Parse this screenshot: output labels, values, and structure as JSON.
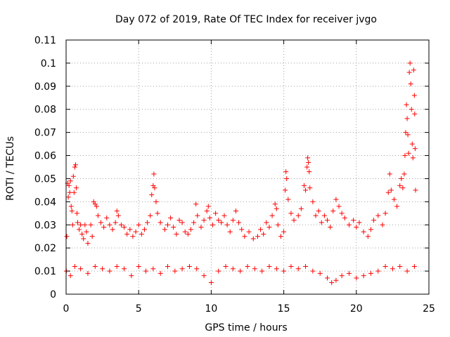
{
  "chart_data": {
    "type": "scatter",
    "title": "Day 072 of 2019, Rate Of TEC Index for receiver jvgo",
    "xlabel": "GPS time / hours",
    "ylabel": "ROTI / TECUs",
    "xlim": [
      0,
      25
    ],
    "ylim": [
      0,
      0.11
    ],
    "xticks": [
      "0",
      "5",
      "10",
      "15",
      "20",
      "25"
    ],
    "yticks": [
      "0",
      "0.01",
      "0.02",
      "0.03",
      "0.04",
      "0.05",
      "0.06",
      "0.07",
      "0.08",
      "0.09",
      "0.1",
      "0.11"
    ],
    "grid": true,
    "marker": "+",
    "color": "#ff0000",
    "series": [
      {
        "name": "ROTI",
        "points": [
          [
            0.05,
            0.025
          ],
          [
            0.1,
            0.048
          ],
          [
            0.15,
            0.042
          ],
          [
            0.2,
            0.047
          ],
          [
            0.25,
            0.044
          ],
          [
            0.3,
            0.049
          ],
          [
            0.35,
            0.038
          ],
          [
            0.4,
            0.036
          ],
          [
            0.45,
            0.03
          ],
          [
            0.5,
            0.051
          ],
          [
            0.55,
            0.044
          ],
          [
            0.6,
            0.055
          ],
          [
            0.65,
            0.056
          ],
          [
            0.7,
            0.046
          ],
          [
            0.75,
            0.035
          ],
          [
            0.8,
            0.031
          ],
          [
            0.9,
            0.028
          ],
          [
            1.0,
            0.03
          ],
          [
            1.1,
            0.026
          ],
          [
            1.2,
            0.024
          ],
          [
            1.3,
            0.03
          ],
          [
            1.4,
            0.027
          ],
          [
            1.5,
            0.022
          ],
          [
            1.7,
            0.03
          ],
          [
            1.8,
            0.025
          ],
          [
            1.9,
            0.04
          ],
          [
            2.0,
            0.039
          ],
          [
            2.1,
            0.038
          ],
          [
            2.2,
            0.034
          ],
          [
            2.4,
            0.031
          ],
          [
            2.6,
            0.029
          ],
          [
            2.8,
            0.033
          ],
          [
            3.0,
            0.03
          ],
          [
            3.2,
            0.028
          ],
          [
            3.4,
            0.031
          ],
          [
            3.5,
            0.036
          ],
          [
            3.6,
            0.034
          ],
          [
            3.8,
            0.03
          ],
          [
            4.0,
            0.029
          ],
          [
            4.2,
            0.026
          ],
          [
            4.4,
            0.028
          ],
          [
            4.6,
            0.025
          ],
          [
            4.8,
            0.027
          ],
          [
            5.0,
            0.03
          ],
          [
            5.2,
            0.026
          ],
          [
            5.4,
            0.028
          ],
          [
            5.6,
            0.031
          ],
          [
            5.8,
            0.034
          ],
          [
            5.9,
            0.043
          ],
          [
            6.0,
            0.047
          ],
          [
            6.05,
            0.052
          ],
          [
            6.1,
            0.046
          ],
          [
            6.2,
            0.04
          ],
          [
            6.3,
            0.035
          ],
          [
            6.5,
            0.031
          ],
          [
            6.8,
            0.028
          ],
          [
            7.0,
            0.03
          ],
          [
            7.2,
            0.033
          ],
          [
            7.4,
            0.029
          ],
          [
            7.6,
            0.026
          ],
          [
            7.8,
            0.032
          ],
          [
            8.0,
            0.031
          ],
          [
            8.2,
            0.027
          ],
          [
            8.4,
            0.026
          ],
          [
            8.6,
            0.028
          ],
          [
            8.8,
            0.031
          ],
          [
            8.95,
            0.039
          ],
          [
            9.05,
            0.034
          ],
          [
            9.3,
            0.029
          ],
          [
            9.5,
            0.032
          ],
          [
            9.7,
            0.036
          ],
          [
            9.8,
            0.038
          ],
          [
            9.9,
            0.033
          ],
          [
            10.1,
            0.03
          ],
          [
            10.3,
            0.035
          ],
          [
            10.5,
            0.032
          ],
          [
            10.7,
            0.031
          ],
          [
            10.9,
            0.034
          ],
          [
            11.1,
            0.03
          ],
          [
            11.3,
            0.027
          ],
          [
            11.5,
            0.032
          ],
          [
            11.7,
            0.036
          ],
          [
            11.9,
            0.031
          ],
          [
            12.1,
            0.028
          ],
          [
            12.3,
            0.025
          ],
          [
            12.6,
            0.027
          ],
          [
            12.9,
            0.024
          ],
          [
            13.2,
            0.025
          ],
          [
            13.4,
            0.028
          ],
          [
            13.6,
            0.026
          ],
          [
            13.8,
            0.031
          ],
          [
            14.0,
            0.029
          ],
          [
            14.2,
            0.034
          ],
          [
            14.4,
            0.039
          ],
          [
            14.5,
            0.037
          ],
          [
            14.6,
            0.03
          ],
          [
            14.8,
            0.025
          ],
          [
            15.0,
            0.027
          ],
          [
            15.1,
            0.045
          ],
          [
            15.15,
            0.053
          ],
          [
            15.2,
            0.05
          ],
          [
            15.3,
            0.041
          ],
          [
            15.5,
            0.035
          ],
          [
            15.7,
            0.032
          ],
          [
            16.0,
            0.034
          ],
          [
            16.2,
            0.037
          ],
          [
            16.4,
            0.047
          ],
          [
            16.5,
            0.045
          ],
          [
            16.6,
            0.055
          ],
          [
            16.65,
            0.059
          ],
          [
            16.7,
            0.057
          ],
          [
            16.75,
            0.053
          ],
          [
            16.8,
            0.046
          ],
          [
            17.0,
            0.04
          ],
          [
            17.2,
            0.034
          ],
          [
            17.4,
            0.036
          ],
          [
            17.6,
            0.031
          ],
          [
            17.8,
            0.034
          ],
          [
            18.0,
            0.032
          ],
          [
            18.2,
            0.029
          ],
          [
            18.4,
            0.036
          ],
          [
            18.6,
            0.041
          ],
          [
            18.8,
            0.038
          ],
          [
            19.0,
            0.035
          ],
          [
            19.2,
            0.033
          ],
          [
            19.5,
            0.03
          ],
          [
            19.8,
            0.032
          ],
          [
            20.0,
            0.029
          ],
          [
            20.2,
            0.031
          ],
          [
            20.5,
            0.027
          ],
          [
            20.8,
            0.025
          ],
          [
            21.0,
            0.028
          ],
          [
            21.2,
            0.032
          ],
          [
            21.5,
            0.034
          ],
          [
            21.8,
            0.03
          ],
          [
            22.0,
            0.035
          ],
          [
            22.2,
            0.044
          ],
          [
            22.3,
            0.052
          ],
          [
            22.4,
            0.045
          ],
          [
            22.6,
            0.041
          ],
          [
            22.8,
            0.038
          ],
          [
            23.0,
            0.047
          ],
          [
            23.1,
            0.05
          ],
          [
            23.2,
            0.046
          ],
          [
            23.3,
            0.052
          ],
          [
            23.35,
            0.06
          ],
          [
            23.4,
            0.07
          ],
          [
            23.45,
            0.082
          ],
          [
            23.5,
            0.076
          ],
          [
            23.55,
            0.069
          ],
          [
            23.6,
            0.061
          ],
          [
            23.65,
            0.096
          ],
          [
            23.7,
            0.1
          ],
          [
            23.75,
            0.091
          ],
          [
            23.8,
            0.08
          ],
          [
            23.85,
            0.065
          ],
          [
            23.9,
            0.059
          ],
          [
            23.95,
            0.097
          ],
          [
            24.0,
            0.086
          ],
          [
            24.02,
            0.078
          ],
          [
            24.05,
            0.063
          ],
          [
            24.08,
            0.045
          ],
          [
            0.02,
            0.01
          ],
          [
            0.3,
            0.008
          ],
          [
            0.6,
            0.012
          ],
          [
            1.0,
            0.011
          ],
          [
            1.5,
            0.009
          ],
          [
            2.0,
            0.012
          ],
          [
            2.5,
            0.011
          ],
          [
            3.0,
            0.01
          ],
          [
            3.5,
            0.012
          ],
          [
            4.0,
            0.011
          ],
          [
            4.5,
            0.008
          ],
          [
            5.0,
            0.012
          ],
          [
            5.5,
            0.01
          ],
          [
            6.0,
            0.011
          ],
          [
            6.5,
            0.009
          ],
          [
            7.0,
            0.012
          ],
          [
            7.5,
            0.01
          ],
          [
            8.0,
            0.011
          ],
          [
            8.5,
            0.012
          ],
          [
            9.0,
            0.011
          ],
          [
            9.5,
            0.008
          ],
          [
            10.0,
            0.005
          ],
          [
            10.5,
            0.01
          ],
          [
            11.0,
            0.012
          ],
          [
            11.5,
            0.011
          ],
          [
            12.0,
            0.01
          ],
          [
            12.5,
            0.012
          ],
          [
            13.0,
            0.011
          ],
          [
            13.5,
            0.01
          ],
          [
            14.0,
            0.012
          ],
          [
            14.5,
            0.011
          ],
          [
            15.0,
            0.01
          ],
          [
            15.5,
            0.012
          ],
          [
            16.0,
            0.011
          ],
          [
            16.5,
            0.012
          ],
          [
            17.0,
            0.01
          ],
          [
            17.5,
            0.009
          ],
          [
            18.0,
            0.007
          ],
          [
            18.3,
            0.005
          ],
          [
            18.6,
            0.006
          ],
          [
            19.0,
            0.008
          ],
          [
            19.5,
            0.009
          ],
          [
            20.0,
            0.007
          ],
          [
            20.5,
            0.008
          ],
          [
            21.0,
            0.009
          ],
          [
            21.5,
            0.01
          ],
          [
            22.0,
            0.012
          ],
          [
            22.5,
            0.011
          ],
          [
            23.0,
            0.012
          ],
          [
            23.5,
            0.01
          ],
          [
            24.0,
            0.012
          ]
        ]
      }
    ]
  }
}
